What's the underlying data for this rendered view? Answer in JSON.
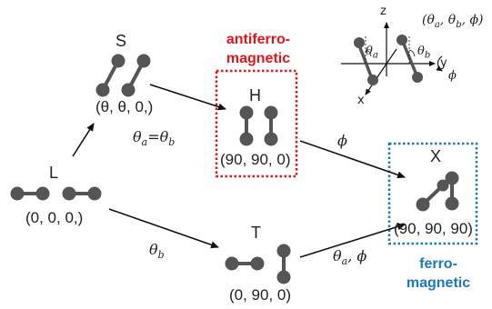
{
  "states": {
    "L": {
      "name": "L",
      "coords": "(0, 0, 0,)"
    },
    "S": {
      "name": "S",
      "coords": "(θ, θ, 0,)"
    },
    "H": {
      "name": "H",
      "coords": "(90, 90, 0)"
    },
    "T": {
      "name": "T",
      "coords": "(0, 90, 0)"
    },
    "X": {
      "name": "X",
      "coords": "(90, 90, 90)"
    }
  },
  "edges": {
    "L_S": {
      "symbol": "θ",
      "sub_a": "a",
      "eq": "=θ",
      "sub_b": "b"
    },
    "L_T": {
      "symbol": "θ",
      "sub": "b"
    },
    "H_X": {
      "symbol": "ϕ"
    },
    "T_X": {
      "symbol": "θ",
      "sub": "a",
      "rest": ", ϕ"
    }
  },
  "labels": {
    "antiferro_line1": "antiferro-",
    "antiferro_line2": "magnetic",
    "ferro_line1": "ferro-",
    "ferro_line2": "magnetic"
  },
  "inset": {
    "params_open": "(θ",
    "params_sub_a": "a",
    "params_mid": ", θ",
    "params_sub_b": "b",
    "params_close": ", ϕ)",
    "axis_z": "z",
    "axis_y": "y",
    "axis_x": "x",
    "theta": "θ",
    "sub_a": "a",
    "sub_b": "b",
    "phi": "ϕ"
  },
  "colors": {
    "antiferro": "#e8141c",
    "ferro": "#1a78c2",
    "molecule": "#555555"
  }
}
